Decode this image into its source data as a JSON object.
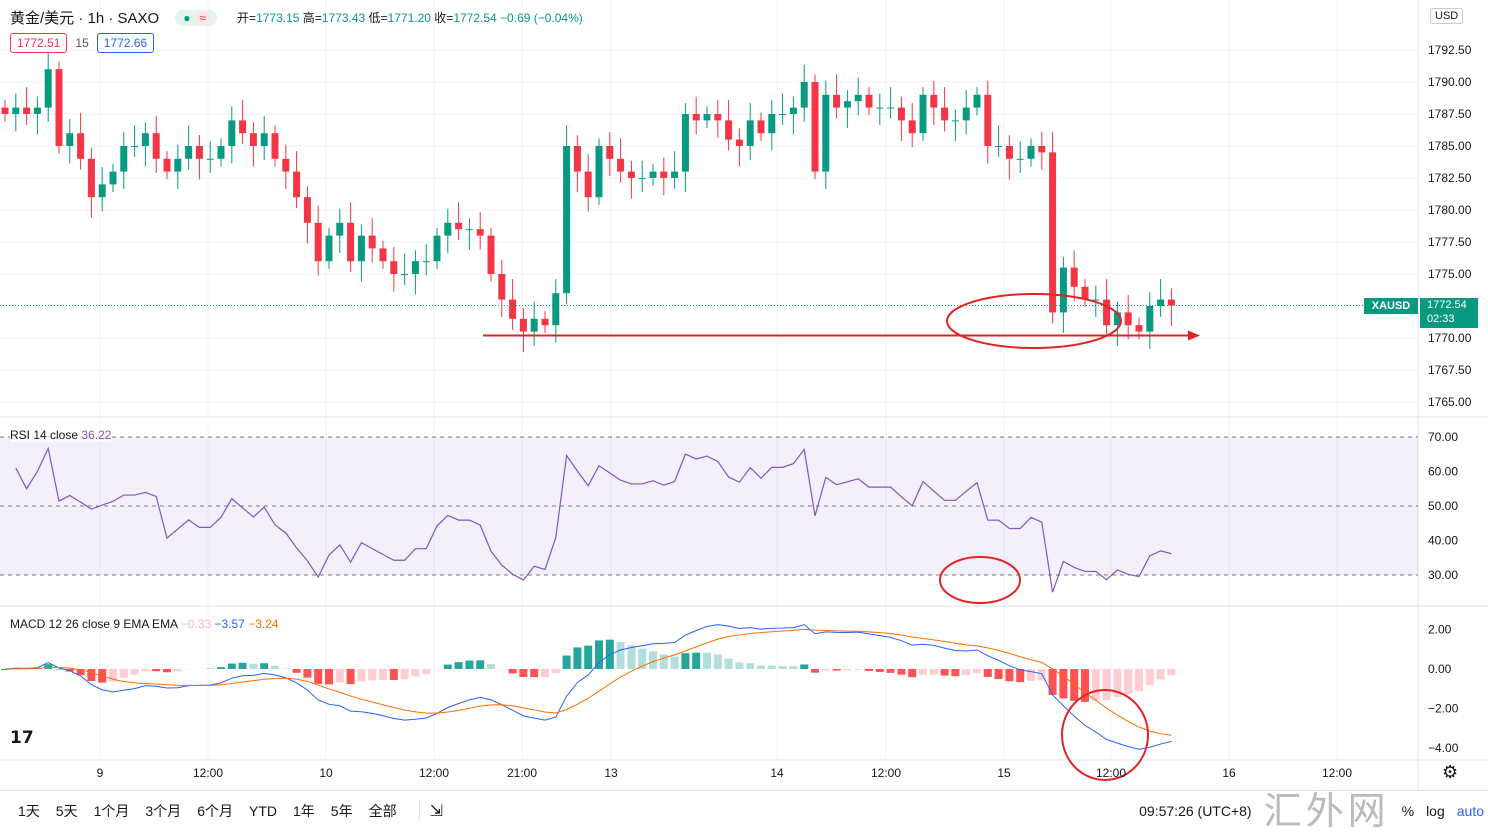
{
  "header": {
    "symbol": "黄金/美元 · 1h · SAXO",
    "dot": "●",
    "wave": "≈",
    "open_label": "开=",
    "open": "1773.15",
    "high_label": "高=",
    "high": "1773.43",
    "low_label": "低=",
    "low": "1771.20",
    "close_label": "收=",
    "close": "1772.54",
    "change": "−0.69 (−0.04%)",
    "bid": "1772.51",
    "spread": "15",
    "ask": "1772.66"
  },
  "currency": "USD",
  "last_price": {
    "symbol": "XAUSD",
    "price": "1772.54",
    "countdown": "02:33"
  },
  "rsi_legend": {
    "name": "RSI 14 close",
    "value": "36.22"
  },
  "macd_legend": {
    "name": "MACD 12 26 close 9 EMA EMA",
    "hist": "−0.33",
    "macd": "−3.57",
    "signal": "−3.24"
  },
  "price_ticks": [
    "1792.50",
    "1790.00",
    "1787.50",
    "1785.00",
    "1782.50",
    "1780.00",
    "1777.50",
    "1775.00",
    "1770.00",
    "1767.50",
    "1765.00"
  ],
  "rsi_ticks": [
    "70.00",
    "60.00",
    "50.00",
    "40.00",
    "30.00"
  ],
  "macd_ticks": [
    "2.00",
    "0.00",
    "−2.00",
    "−4.00"
  ],
  "time_labels": [
    "9",
    "12:00",
    "10",
    "12:00",
    "21:00",
    "13",
    "14",
    "12:00",
    "15",
    "12:00",
    "16",
    "12:00"
  ],
  "ranges": [
    "1天",
    "5天",
    "1个月",
    "3个月",
    "6个月",
    "YTD",
    "1年",
    "5年",
    "全部"
  ],
  "clock": "09:57:26 (UTC+8)",
  "pct": "%",
  "log": "log",
  "auto": "auto",
  "watermark": "汇外网",
  "colors": {
    "up": "#089981",
    "down": "#f23645",
    "rsi": "#7e57c2",
    "macd": "#2962ff",
    "signal": "#ff6d00",
    "annot": "#e02424"
  },
  "chart_data": {
    "type": "candlestick",
    "interval": "1h",
    "ylim": [
      1764,
      1795
    ],
    "closes": [
      1787.5,
      1788,
      1787.5,
      1788,
      1791,
      1785,
      1786,
      1784,
      1781,
      1782,
      1783,
      1785,
      1785,
      1786,
      1784,
      1783,
      1784,
      1785,
      1784,
      1784,
      1785,
      1787,
      1786,
      1785,
      1786,
      1784,
      1783,
      1781,
      1779,
      1776,
      1778,
      1779,
      1776,
      1778,
      1777,
      1776,
      1775,
      1775,
      1776,
      1776,
      1778,
      1779,
      1778.5,
      1778.5,
      1778,
      1775,
      1773,
      1771.5,
      1770.5,
      1771.5,
      1771,
      1773.5,
      1785,
      1783,
      1781,
      1785,
      1784,
      1783,
      1782.5,
      1782.5,
      1783,
      1782.5,
      1783,
      1787.5,
      1787,
      1787.5,
      1787,
      1785.5,
      1785,
      1787,
      1786,
      1787.5,
      1787.5,
      1788,
      1790,
      1783,
      1789,
      1788,
      1788.5,
      1789,
      1788,
      1788,
      1788,
      1787,
      1786,
      1789,
      1788,
      1787,
      1787,
      1788,
      1789,
      1785,
      1785,
      1784,
      1784,
      1785,
      1784.5,
      1772,
      1775.5,
      1774,
      1773,
      1773,
      1771,
      1772,
      1771,
      1770.5,
      1772.5,
      1773,
      1772.54
    ],
    "support_level": 1770.2
  }
}
